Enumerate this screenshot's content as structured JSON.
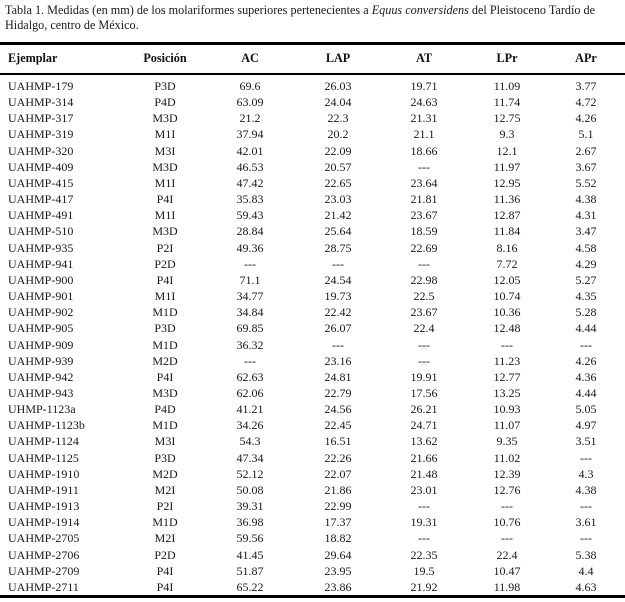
{
  "title": {
    "prefix": "Tabla 1. Medidas (en mm) de los molariformes superiores pertenecientes a ",
    "species": "Equus conversidens",
    "suffix": " del Pleistoceno Tardío de Hidalgo, centro de México."
  },
  "table": {
    "columns": [
      "Ejemplar",
      "Posición",
      "AC",
      "LAP",
      "AT",
      "LPr",
      "APr"
    ],
    "missing_marker": "---",
    "rows": [
      [
        "UAHMP-179",
        "P3D",
        "69.6",
        "26.03",
        "19.71",
        "11.09",
        "3.77"
      ],
      [
        "UAHMP-314",
        "P4D",
        "63.09",
        "24.04",
        "24.63",
        "11.74",
        "4.72"
      ],
      [
        "UAHMP-317",
        "M3D",
        "21.2",
        "22.3",
        "21.31",
        "12.75",
        "4.26"
      ],
      [
        "UAHMP-319",
        "M1I",
        "37.94",
        "20.2",
        "21.1",
        "9.3",
        "5.1"
      ],
      [
        "UAHMP-320",
        "M3I",
        "42.01",
        "22.09",
        "18.66",
        "12.1",
        "2.67"
      ],
      [
        "UAHMP-409",
        "M3D",
        "46.53",
        "20.57",
        "---",
        "11.97",
        "3.67"
      ],
      [
        "UAHMP-415",
        "M1I",
        "47.42",
        "22.65",
        "23.64",
        "12.95",
        "5.52"
      ],
      [
        "UAHMP-417",
        "P4I",
        "35.83",
        "23.03",
        "21.81",
        "11.36",
        "4.38"
      ],
      [
        "UAHMP-491",
        "M1I",
        "59.43",
        "21.42",
        "23.67",
        "12.87",
        "4.31"
      ],
      [
        "UAHMP-510",
        "M3D",
        "28.84",
        "25.64",
        "18.59",
        "11.84",
        "3.47"
      ],
      [
        "UAHMP-935",
        "P2I",
        "49.36",
        "28.75",
        "22.69",
        "8.16",
        "4.58"
      ],
      [
        "UAHMP-941",
        "P2D",
        "---",
        "---",
        "---",
        "7.72",
        "4.29"
      ],
      [
        "UAHMP-900",
        "P4I",
        "71.1",
        "24.54",
        "22.98",
        "12.05",
        "5.27"
      ],
      [
        "UAHMP-901",
        "M1I",
        "34.77",
        "19.73",
        "22.5",
        "10.74",
        "4.35"
      ],
      [
        "UAHMP-902",
        "M1D",
        "34.84",
        "22.42",
        "23.67",
        "10.36",
        "5.28"
      ],
      [
        "UAHMP-905",
        "P3D",
        "69.85",
        "26.07",
        "22.4",
        "12.48",
        "4.44"
      ],
      [
        "UAHMP-909",
        "M1D",
        "36.32",
        "---",
        "---",
        "---",
        "---"
      ],
      [
        "UAHMP-939",
        "M2D",
        "---",
        "23.16",
        "---",
        "11.23",
        "4.26"
      ],
      [
        "UAHMP-942",
        "P4I",
        "62.63",
        "24.81",
        "19.91",
        "12.77",
        "4.36"
      ],
      [
        "UAHMP-943",
        "M3D",
        "62.06",
        "22.79",
        "17.56",
        "13.25",
        "4.44"
      ],
      [
        "UHMP-1123a",
        "P4D",
        "41.21",
        "24.56",
        "26.21",
        "10.93",
        "5.05"
      ],
      [
        "UAHMP-1123b",
        "M1D",
        "34.26",
        "22.45",
        "24.71",
        "11.07",
        "4.97"
      ],
      [
        "UAHMP-1124",
        "M3I",
        "54.3",
        "16.51",
        "13.62",
        "9.35",
        "3.51"
      ],
      [
        "UAHMP-1125",
        "P3D",
        "47.34",
        "22.26",
        "21.66",
        "11.02",
        "---"
      ],
      [
        "UAHMP-1910",
        "M2D",
        "52.12",
        "22.07",
        "21.48",
        "12.39",
        "4.3"
      ],
      [
        "UAHMP-1911",
        "M2I",
        "50.08",
        "21.86",
        "23.01",
        "12.76",
        "4.38"
      ],
      [
        "UAHMP-1913",
        "P2I",
        "39.31",
        "22.99",
        "---",
        "---",
        "---"
      ],
      [
        "UAHMP-1914",
        "M1D",
        "36.98",
        "17.37",
        "19.31",
        "10.76",
        "3.61"
      ],
      [
        "UAHMP-2705",
        "M2I",
        "59.56",
        "18.82",
        "---",
        "---",
        "---"
      ],
      [
        "UAHMP-2706",
        "P2D",
        "41.45",
        "29.64",
        "22.35",
        "22.4",
        "5.38"
      ],
      [
        "UAHMP-2709",
        "P4I",
        "51.87",
        "23.95",
        "19.5",
        "10.47",
        "4.4"
      ],
      [
        "UAHMP-2711",
        "P4I",
        "65.22",
        "23.86",
        "21.92",
        "11.98",
        "4.63"
      ]
    ]
  }
}
